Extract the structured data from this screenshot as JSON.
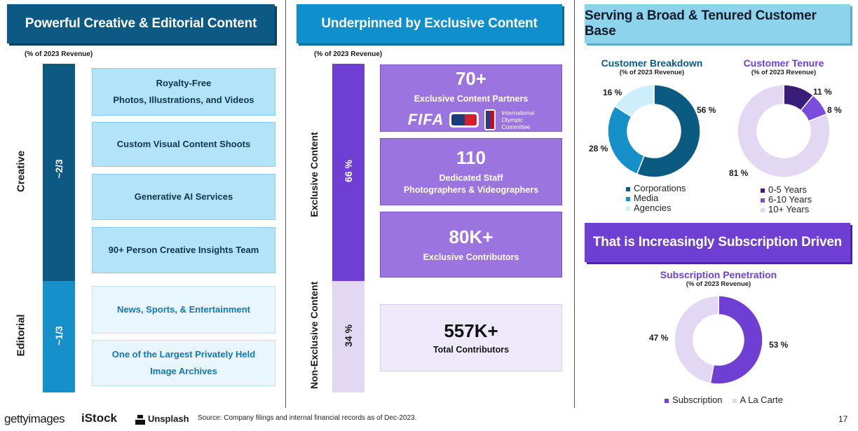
{
  "panels": {
    "creative_editorial": {
      "title": "Powerful Creative & Editorial Content",
      "note": "(% of 2023 Revenue)",
      "creative_label": "Creative",
      "editorial_label": "Editorial",
      "creative_share": "~2/3",
      "editorial_share": "~1/3",
      "creative_items": [
        {
          "line1": "Royalty-Free",
          "line2": "Photos, Illustrations, and Videos"
        },
        {
          "line1": "Custom Visual Content Shoots"
        },
        {
          "line1": "Generative AI Services"
        },
        {
          "line1": "90+ Person Creative Insights Team"
        }
      ],
      "editorial_items": [
        {
          "line1": "News, Sports, & Entertainment"
        },
        {
          "line1": "One of the Largest Privately Held",
          "line2": "Image Archives"
        }
      ]
    },
    "exclusive": {
      "title": "Underpinned by Exclusive Content",
      "note": "(% of 2023 Revenue)",
      "exclusive_label": "Exclusive Content",
      "non_exclusive_label": "Non-Exclusive Content",
      "exclusive_share": "66 %",
      "non_exclusive_share": "34 %",
      "exclusive_pct": 66,
      "cards": [
        {
          "value": "70+",
          "line1": "Exclusive Content Partners"
        },
        {
          "value": "110",
          "line1": "Dedicated Staff",
          "line2": "Photographers & Videographers"
        },
        {
          "value": "80K+",
          "line1": "Exclusive Contributors"
        }
      ],
      "partner_logos": {
        "fifa": "FIFA",
        "ioc": [
          "International",
          "Olympic",
          "Committee"
        ]
      },
      "non_exclusive_card": {
        "value": "557K+",
        "line1": "Total Contributors"
      }
    },
    "customers": {
      "title": "Serving a Broad & Tenured Customer Base",
      "breakdown": {
        "title": "Customer Breakdown",
        "subtitle": "(% of 2023 Revenue)"
      },
      "tenure": {
        "title": "Customer Tenure",
        "subtitle": "(% of 2023 Revenue)"
      }
    },
    "subscription": {
      "title": "That is Increasingly Subscription Driven",
      "chart_title": "Subscription Penetration",
      "chart_subtitle": "(% of 2023 Revenue)"
    }
  },
  "chart_data": [
    {
      "type": "pie",
      "title": "Customer Breakdown",
      "subtitle": "(% of 2023 Revenue)",
      "labels": [
        "Corporations",
        "Media",
        "Agencies"
      ],
      "values": [
        56,
        28,
        16
      ],
      "value_labels": [
        "56 %",
        "28 %",
        "16 %"
      ],
      "colors": [
        "#0b5a82",
        "#1590c9",
        "#cdeefb"
      ],
      "donut": true,
      "legend": "bottom"
    },
    {
      "type": "pie",
      "title": "Customer Tenure",
      "subtitle": "(% of 2023 Revenue)",
      "labels": [
        "0-5 Years",
        "6-10 Years",
        "10+ Years"
      ],
      "values": [
        11,
        8,
        81
      ],
      "value_labels": [
        "11 %",
        "8 %",
        "81 %"
      ],
      "colors": [
        "#3a1d78",
        "#7a4ddc",
        "#e2d8f4"
      ],
      "donut": true,
      "legend": "bottom"
    },
    {
      "type": "pie",
      "title": "Subscription Penetration",
      "subtitle": "(% of 2023 Revenue)",
      "labels": [
        "Subscription",
        "A La Carte"
      ],
      "values": [
        53,
        47
      ],
      "value_labels": [
        "53 %",
        "47 %"
      ],
      "colors": [
        "#6e3fd2",
        "#e2d8f4"
      ],
      "donut": true,
      "legend": "bottom"
    }
  ],
  "footer": {
    "brands": [
      "gettyimages",
      "iStock",
      "Unsplash"
    ],
    "source": "Source: Company filings and internal financial records as of Dec-2023.",
    "page": "17"
  }
}
